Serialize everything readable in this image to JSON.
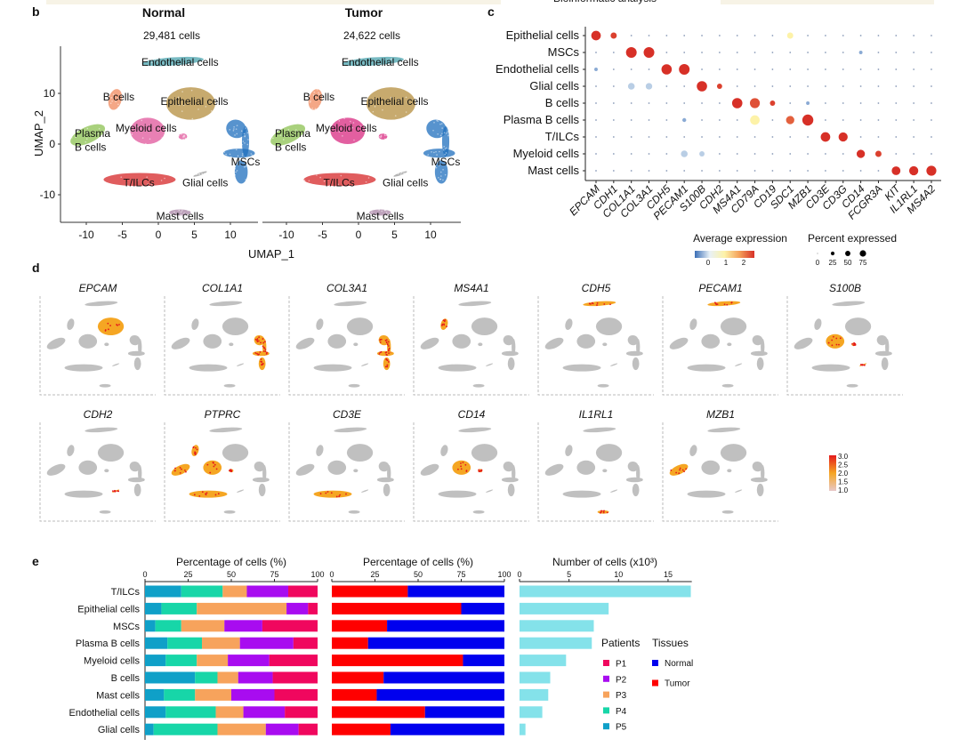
{
  "header_strip": {
    "text": "Bioinformatic analysis",
    "color": "#f7f3e6"
  },
  "chart_data": [
    {
      "panel": "b",
      "type": "scatter",
      "subtype": "umap",
      "xlabel": "UMAP_1",
      "ylabel": "UMAP_2",
      "xticks": [
        "-10",
        "-5",
        "0",
        "5",
        "10"
      ],
      "yticks": [
        "10",
        "0",
        "-10"
      ],
      "facets": [
        {
          "title": "Normal",
          "subtitle": "29,481 cells"
        },
        {
          "title": "Tumor",
          "subtitle": "24,622 cells"
        }
      ],
      "clusters": [
        {
          "name": "Endothelial cells",
          "color": "#4aa3ad"
        },
        {
          "name": "B cells",
          "color": "#f08a5d"
        },
        {
          "name": "Epithelial cells",
          "color": "#b48d3e"
        },
        {
          "name": "Plasma",
          "name2": "B cells",
          "color": "#8cc152"
        },
        {
          "name": "Myeloid cells",
          "color": "#e0569b"
        },
        {
          "name": "MSCs",
          "color": "#1f6fbd"
        },
        {
          "name": "T/ILCs",
          "color": "#d62728"
        },
        {
          "name": "Glial cells",
          "color": "#9a9a9a"
        },
        {
          "name": "Mast cells",
          "color": "#a884a6"
        }
      ]
    },
    {
      "panel": "c",
      "type": "scatter",
      "subtype": "dotplot",
      "rows": [
        "Epithelial cells",
        "MSCs",
        "Endothelial cells",
        "Glial cells",
        "B cells",
        "Plasma B cells",
        "T/ILCs",
        "Myeloid cells",
        "Mast cells"
      ],
      "genes": [
        "EPCAM",
        "CDH1",
        "COL1A1",
        "COL3A1",
        "CDH5",
        "PECAM1",
        "S100B",
        "CDH2",
        "MS4A1",
        "CD79A",
        "CD19",
        "SDC1",
        "MZB1",
        "CD3E",
        "CD3G",
        "CD14",
        "FCGR3A",
        "KIT",
        "IL1RL1",
        "MS4A2"
      ],
      "background": {
        "pct_expressed": 2,
        "avg_expression": 0
      },
      "points": [
        {
          "cell": "Epithelial cells",
          "gene": "EPCAM",
          "pct": 60,
          "avg": 2.5
        },
        {
          "cell": "Epithelial cells",
          "gene": "CDH1",
          "pct": 25,
          "avg": 2.4
        },
        {
          "cell": "Epithelial cells",
          "gene": "SDC1",
          "pct": 25,
          "avg": 1.1
        },
        {
          "cell": "MSCs",
          "gene": "COL1A1",
          "pct": 75,
          "avg": 2.5
        },
        {
          "cell": "MSCs",
          "gene": "COL3A1",
          "pct": 75,
          "avg": 2.5
        },
        {
          "cell": "MSCs",
          "gene": "CD14",
          "pct": 8,
          "avg": 0
        },
        {
          "cell": "Endothelial cells",
          "gene": "EPCAM",
          "pct": 8,
          "avg": 0
        },
        {
          "cell": "Endothelial cells",
          "gene": "CDH5",
          "pct": 70,
          "avg": 2.5
        },
        {
          "cell": "Endothelial cells",
          "gene": "PECAM1",
          "pct": 75,
          "avg": 2.5
        },
        {
          "cell": "Glial cells",
          "gene": "COL1A1",
          "pct": 30,
          "avg": 0.3
        },
        {
          "cell": "Glial cells",
          "gene": "COL3A1",
          "pct": 28,
          "avg": 0.3
        },
        {
          "cell": "Glial cells",
          "gene": "S100B",
          "pct": 70,
          "avg": 2.5
        },
        {
          "cell": "Glial cells",
          "gene": "CDH2",
          "pct": 18,
          "avg": 2.4
        },
        {
          "cell": "B cells",
          "gene": "MS4A1",
          "pct": 70,
          "avg": 2.5
        },
        {
          "cell": "B cells",
          "gene": "CD79A",
          "pct": 65,
          "avg": 2.3
        },
        {
          "cell": "B cells",
          "gene": "CD19",
          "pct": 18,
          "avg": 2.4
        },
        {
          "cell": "B cells",
          "gene": "MZB1",
          "pct": 8,
          "avg": 0
        },
        {
          "cell": "Plasma B cells",
          "gene": "PECAM1",
          "pct": 10,
          "avg": 0
        },
        {
          "cell": "Plasma B cells",
          "gene": "CD79A",
          "pct": 60,
          "avg": 1.1
        },
        {
          "cell": "Plasma B cells",
          "gene": "SDC1",
          "pct": 45,
          "avg": 2.2
        },
        {
          "cell": "Plasma B cells",
          "gene": "MZB1",
          "pct": 80,
          "avg": 2.6
        },
        {
          "cell": "T/ILCs",
          "gene": "CD3E",
          "pct": 60,
          "avg": 2.5
        },
        {
          "cell": "T/ILCs",
          "gene": "CD3G",
          "pct": 55,
          "avg": 2.5
        },
        {
          "cell": "Myeloid cells",
          "gene": "PECAM1",
          "pct": 30,
          "avg": 0.3
        },
        {
          "cell": "Myeloid cells",
          "gene": "S100B",
          "pct": 18,
          "avg": 0.3
        },
        {
          "cell": "Myeloid cells",
          "gene": "CD14",
          "pct": 45,
          "avg": 2.5
        },
        {
          "cell": "Myeloid cells",
          "gene": "FCGR3A",
          "pct": 25,
          "avg": 2.4
        },
        {
          "cell": "Mast cells",
          "gene": "KIT",
          "pct": 50,
          "avg": 2.5
        },
        {
          "cell": "Mast cells",
          "gene": "IL1RL1",
          "pct": 55,
          "avg": 2.5
        },
        {
          "cell": "Mast cells",
          "gene": "MS4A2",
          "pct": 65,
          "avg": 2.5
        }
      ],
      "legend_color": {
        "title": "Average expression",
        "ticks": [
          "0",
          "1",
          "2"
        ],
        "colors": [
          "#3b6fb6",
          "#e8f1f7",
          "#fdf2a8",
          "#f4a05a",
          "#d73027"
        ]
      },
      "legend_size": {
        "title": "Percent expressed",
        "ticks": [
          "0",
          "25",
          "50",
          "75"
        ],
        "values": [
          0,
          25,
          50,
          75
        ]
      }
    },
    {
      "panel": "d",
      "type": "scatter",
      "subtype": "feature-plot",
      "genes": [
        {
          "gene": "EPCAM",
          "cluster": "Epithelial cells"
        },
        {
          "gene": "COL1A1",
          "cluster": "MSCs"
        },
        {
          "gene": "COL3A1",
          "cluster": "MSCs"
        },
        {
          "gene": "MS4A1",
          "cluster": "B cells"
        },
        {
          "gene": "CDH5",
          "cluster": "Endothelial cells"
        },
        {
          "gene": "PECAM1",
          "cluster": "Endothelial cells"
        },
        {
          "gene": "S100B",
          "cluster": "Glial cells"
        },
        {
          "gene": "CDH2",
          "cluster": "Glial cells"
        },
        {
          "gene": "PTPRC",
          "cluster": "T/ILCs"
        },
        {
          "gene": "CD3E",
          "cluster": "T/ILCs"
        },
        {
          "gene": "CD14",
          "cluster": "Myeloid cells"
        },
        {
          "gene": "IL1RL1",
          "cluster": "Mast cells"
        },
        {
          "gene": "MZB1",
          "cluster": "Plasma B cells"
        }
      ],
      "colorbar": {
        "ticks": [
          "3.0",
          "2.5",
          "2.0",
          "1.5",
          "1.0"
        ],
        "range": [
          1.0,
          3.0
        ],
        "colors": [
          "#e8c8c8",
          "#f5a623",
          "#e41a1c"
        ]
      },
      "background_color": "#c0c0c0"
    },
    {
      "panel": "e",
      "type": "bar",
      "subtype": "stacked-horizontal",
      "xlabel": "Percentage of cells (%)",
      "xticks": [
        "0",
        "25",
        "50",
        "75",
        "100"
      ],
      "xlim": [
        0,
        100
      ],
      "categories": [
        "T/ILCs",
        "Epithelial cells",
        "MSCs",
        "Plasma B cells",
        "Myeloid cells",
        "B cells",
        "Mast cells",
        "Endothelial cells",
        "Glial cells"
      ],
      "series": [
        {
          "name": "P5",
          "color": "#0fa0c8",
          "values": [
            21,
            9.5,
            6,
            13,
            12,
            29,
            11,
            12,
            5
          ]
        },
        {
          "name": "P4",
          "color": "#17d6a8",
          "values": [
            24,
            20.5,
            15,
            20,
            18,
            13,
            18,
            29,
            37
          ]
        },
        {
          "name": "P3",
          "color": "#f7a35c",
          "values": [
            14,
            52,
            25,
            22,
            18,
            12,
            21,
            16,
            28
          ]
        },
        {
          "name": "P2",
          "color": "#a80cf0",
          "values": [
            24,
            12.5,
            22,
            31,
            24,
            20,
            25,
            24,
            19
          ]
        },
        {
          "name": "P1",
          "color": "#f0075e",
          "values": [
            17,
            5.5,
            32,
            14,
            28,
            26,
            25,
            19,
            11
          ]
        }
      ]
    },
    {
      "panel": "e",
      "type": "bar",
      "subtype": "stacked-horizontal",
      "xlabel": "Percentage of cells (%)",
      "xticks": [
        "0",
        "25",
        "50",
        "75",
        "100"
      ],
      "xlim": [
        0,
        100
      ],
      "categories": [
        "T/ILCs",
        "Epithelial cells",
        "MSCs",
        "Plasma B cells",
        "Myeloid cells",
        "B cells",
        "Mast cells",
        "Endothelial cells",
        "Glial cells"
      ],
      "series": [
        {
          "name": "Tumor",
          "color": "#ff0000",
          "values": [
            44,
            75,
            32,
            21,
            76,
            30,
            26,
            54,
            34
          ]
        },
        {
          "name": "Normal",
          "color": "#0000ee",
          "values": [
            56,
            25,
            68,
            79,
            24,
            70,
            74,
            46,
            66
          ]
        }
      ]
    },
    {
      "panel": "e",
      "type": "bar",
      "subtype": "horizontal",
      "xlabel": "Number of cells (x10³)",
      "xticks": [
        "0",
        "5",
        "10",
        "15"
      ],
      "xlim": [
        0,
        17.4
      ],
      "color": "#84e2ea",
      "categories": [
        "T/ILCs",
        "Epithelial cells",
        "MSCs",
        "Plasma B cells",
        "Myeloid cells",
        "B cells",
        "Mast cells",
        "Endothelial cells",
        "Glial cells"
      ],
      "values": [
        17.3,
        9.0,
        7.5,
        7.3,
        4.7,
        3.1,
        2.9,
        2.3,
        0.6
      ]
    }
  ],
  "panel_letters": {
    "b": "b",
    "c": "c",
    "d": "d",
    "e": "e"
  },
  "legend_e": {
    "patients_title": "Patients",
    "patients": [
      {
        "label": "P1",
        "color": "#f0075e"
      },
      {
        "label": "P2",
        "color": "#a80cf0"
      },
      {
        "label": "P3",
        "color": "#f7a35c"
      },
      {
        "label": "P4",
        "color": "#17d6a8"
      },
      {
        "label": "P5",
        "color": "#0fa0c8"
      }
    ],
    "tissues_title": "Tissues",
    "tissues": [
      {
        "label": "Normal",
        "color": "#0000ee"
      },
      {
        "label": "Tumor",
        "color": "#ff0000"
      }
    ]
  }
}
